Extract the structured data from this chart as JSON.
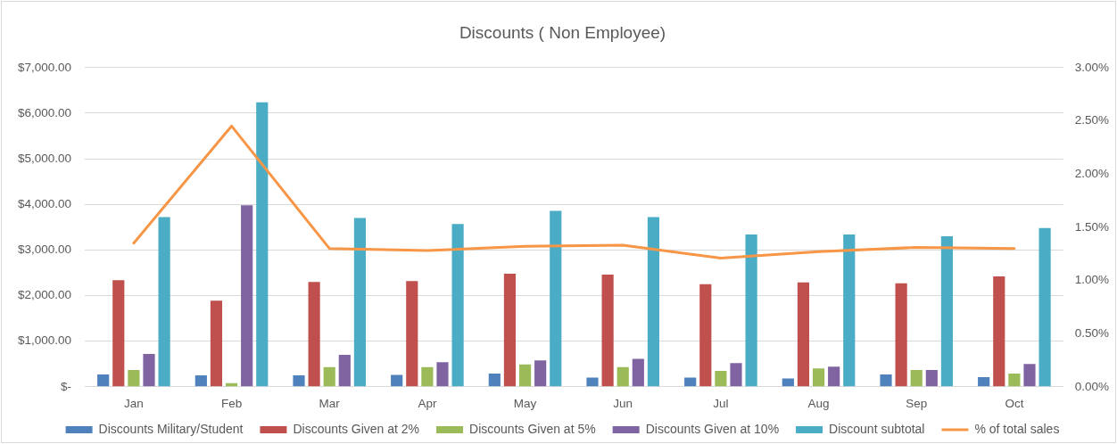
{
  "chart_data": {
    "type": "bar",
    "title": "Discounts ( Non Employee)",
    "categories": [
      "Jan",
      "Feb",
      "Mar",
      "Apr",
      "May",
      "Jun",
      "Jul",
      "Aug",
      "Sep",
      "Oct"
    ],
    "series": [
      {
        "name": "Discounts Military/Student",
        "color": "#4f81bd",
        "values": [
          270,
          250,
          250,
          260,
          290,
          200,
          200,
          180,
          270,
          210
        ]
      },
      {
        "name": "Discounts Given at 2%",
        "color": "#c0504d",
        "values": [
          2340,
          1890,
          2300,
          2320,
          2480,
          2460,
          2250,
          2290,
          2270,
          2420
        ]
      },
      {
        "name": "Discounts Given at 5%",
        "color": "#9bbb59",
        "values": [
          370,
          80,
          430,
          430,
          490,
          430,
          350,
          400,
          370,
          290
        ]
      },
      {
        "name": "Discounts Given at 10%",
        "color": "#8064a2",
        "values": [
          720,
          3980,
          700,
          540,
          580,
          610,
          520,
          440,
          370,
          500
        ]
      },
      {
        "name": "Discount subtotal",
        "color": "#4bacc6",
        "values": [
          3720,
          6240,
          3700,
          3570,
          3860,
          3720,
          3340,
          3340,
          3300,
          3480
        ]
      },
      {
        "name": "% of total sales",
        "type": "line",
        "axis": "y2",
        "color": "#f79646",
        "values": [
          1.35,
          2.45,
          1.3,
          1.28,
          1.32,
          1.33,
          1.21,
          1.27,
          1.31,
          1.3
        ]
      }
    ],
    "ylim": [
      0,
      7000
    ],
    "yticks": [
      {
        "value": 0,
        "label": "$-"
      },
      {
        "value": 1000,
        "label": "$1,000.00"
      },
      {
        "value": 2000,
        "label": "$2,000.00"
      },
      {
        "value": 3000,
        "label": "$3,000.00"
      },
      {
        "value": 4000,
        "label": "$4,000.00"
      },
      {
        "value": 5000,
        "label": "$5,000.00"
      },
      {
        "value": 6000,
        "label": "$6,000.00"
      },
      {
        "value": 7000,
        "label": "$7,000.00"
      }
    ],
    "y2lim": [
      0,
      3
    ],
    "y2ticks": [
      {
        "value": 0,
        "label": "0.00%"
      },
      {
        "value": 0.5,
        "label": "0.50%"
      },
      {
        "value": 1,
        "label": "1.00%"
      },
      {
        "value": 1.5,
        "label": "1.50%"
      },
      {
        "value": 2,
        "label": "2.00%"
      },
      {
        "value": 2.5,
        "label": "2.50%"
      },
      {
        "value": 3,
        "label": "3.00%"
      }
    ],
    "grid": "y",
    "legend": "bottom"
  }
}
